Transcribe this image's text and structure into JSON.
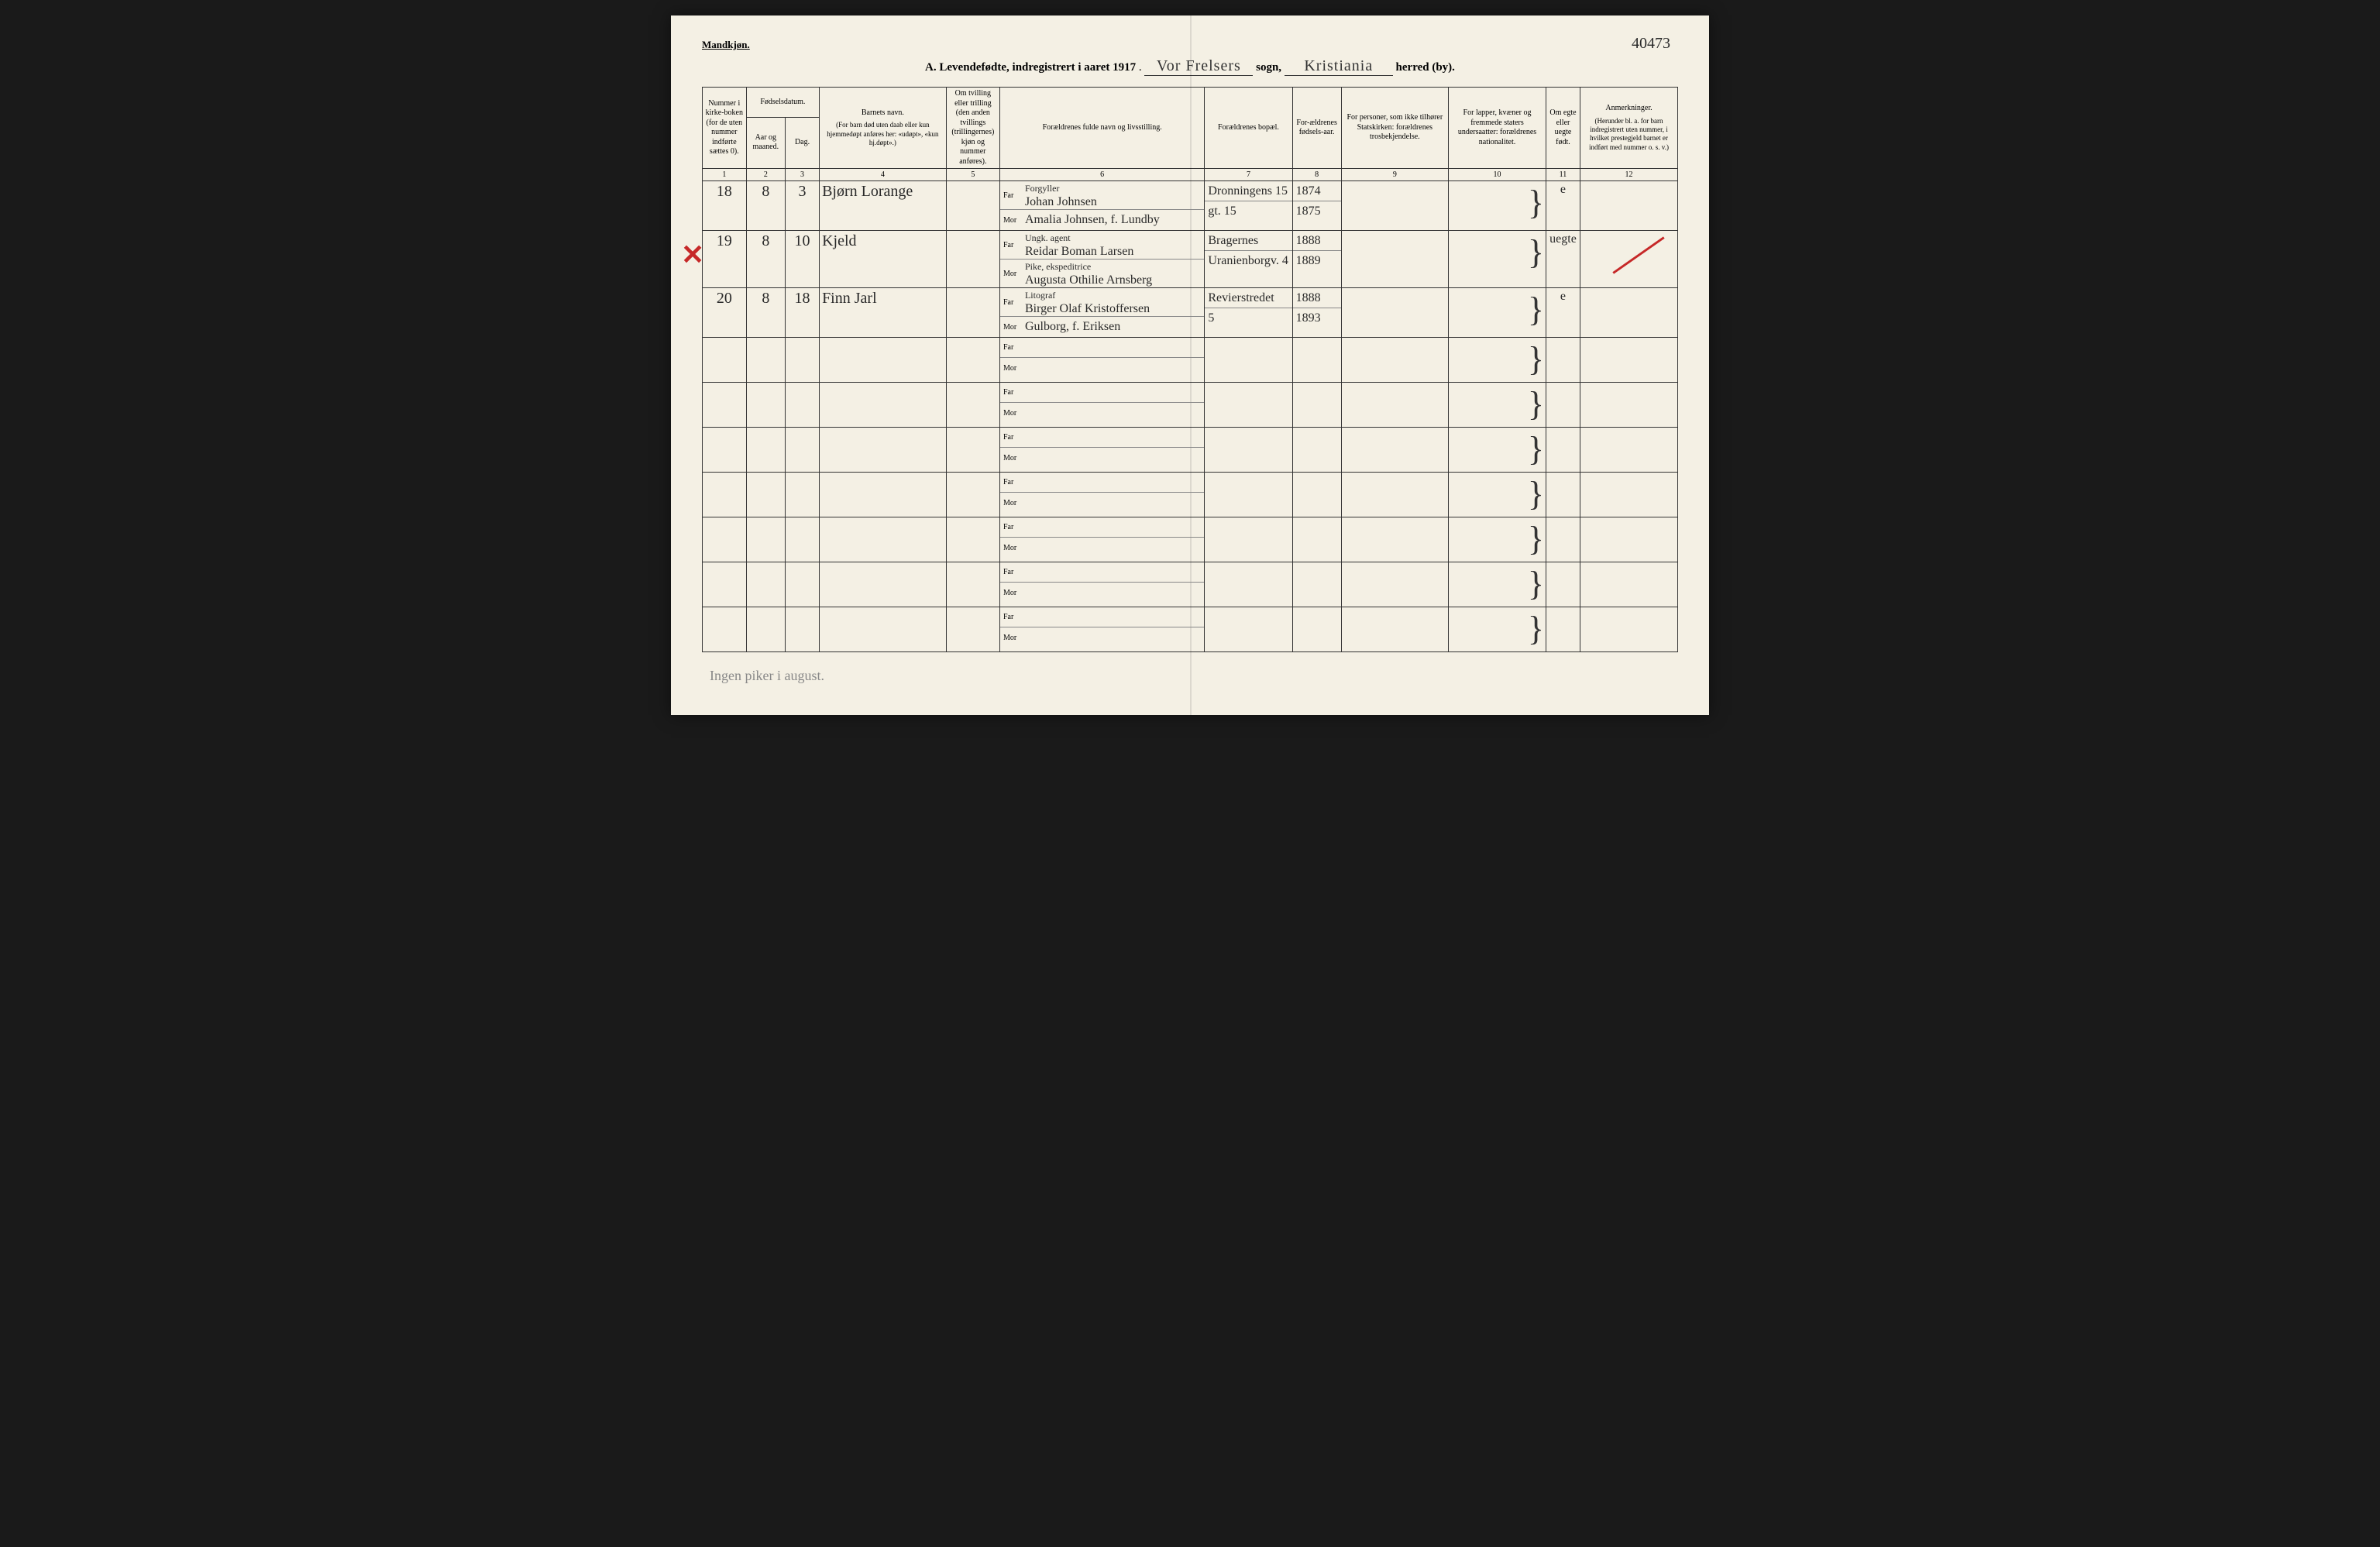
{
  "header": {
    "gender_label": "Mandkjøn.",
    "page_number": "40473",
    "title_prefix": "A.",
    "title_text": "Levendefødte, indregistrert i aaret 191",
    "year_suffix": "7",
    "sogn_value": "Vor Frelsers",
    "sogn_label": "sogn,",
    "herred_value": "Kristiania",
    "herred_label": "herred (by)."
  },
  "columns": {
    "c1": "Nummer i kirke-boken (for de uten nummer indførte sættes 0).",
    "c2_group": "Fødselsdatum.",
    "c2a": "Aar og maaned.",
    "c2b": "Dag.",
    "c3_title": "Barnets navn.",
    "c3_sub": "(For barn død uten daab eller kun hjemmedøpt anføres her: «udøpt», «kun hj.døpt».)",
    "c4": "Om tvilling eller trilling (den anden tvillings (trillingernes) kjøn og nummer anføres).",
    "c5": "Forældrenes fulde navn og livsstilling.",
    "c6": "Forældrenes bopæl.",
    "c7": "For-ældrenes fødsels-aar.",
    "c8": "For personer, som ikke tilhører Statskirken: forældrenes trosbekjendelse.",
    "c9": "For lapper, kvæner og fremmede staters undersaatter: forældrenes nationalitet.",
    "c10": "Om egte eller uegte født.",
    "c11_title": "Anmerkninger.",
    "c11_sub": "(Herunder bl. a. for barn indregistrert uten nummer, i hvilket prestegjeld barnet er indført med nummer o. s. v.)"
  },
  "colnums": [
    "1",
    "2",
    "3",
    "4",
    "5",
    "6",
    "7",
    "8",
    "9",
    "10",
    "11",
    "12"
  ],
  "parent_labels": {
    "far": "Far",
    "mor": "Mor"
  },
  "rows": [
    {
      "num": "18",
      "month": "8",
      "day": "3",
      "name": "Bjørn Lorange",
      "far_occ": "Forgyller",
      "far": "Johan Johnsen",
      "mor": "Amalia Johnsen, f. Lundby",
      "far_addr": "Dronningens 15",
      "mor_addr": "gt. 15",
      "far_year": "1874",
      "mor_year": "1875",
      "legit": "e",
      "marked": false
    },
    {
      "num": "19",
      "month": "8",
      "day": "10",
      "name": "Kjeld",
      "far_occ": "Ungk. agent",
      "far": "Reidar Boman Larsen",
      "mor_occ": "Pike, ekspeditrice",
      "mor": "Augusta Othilie Arnsberg",
      "far_addr": "Bragernes",
      "mor_addr": "Uranienborgv. 4",
      "far_year": "1888",
      "mor_year": "1889",
      "legit": "uegte",
      "marked": true
    },
    {
      "num": "20",
      "month": "8",
      "day": "18",
      "name": "Finn Jarl",
      "far_occ": "Litograf",
      "far": "Birger Olaf Kristoffersen",
      "mor": "Gulborg, f. Eriksen",
      "far_addr": "Revierstredet",
      "mor_addr": "5",
      "far_year": "1888",
      "mor_year": "1893",
      "legit": "e",
      "marked": false
    }
  ],
  "empty_rows": 7,
  "bottom_note": "Ingen piker i august."
}
